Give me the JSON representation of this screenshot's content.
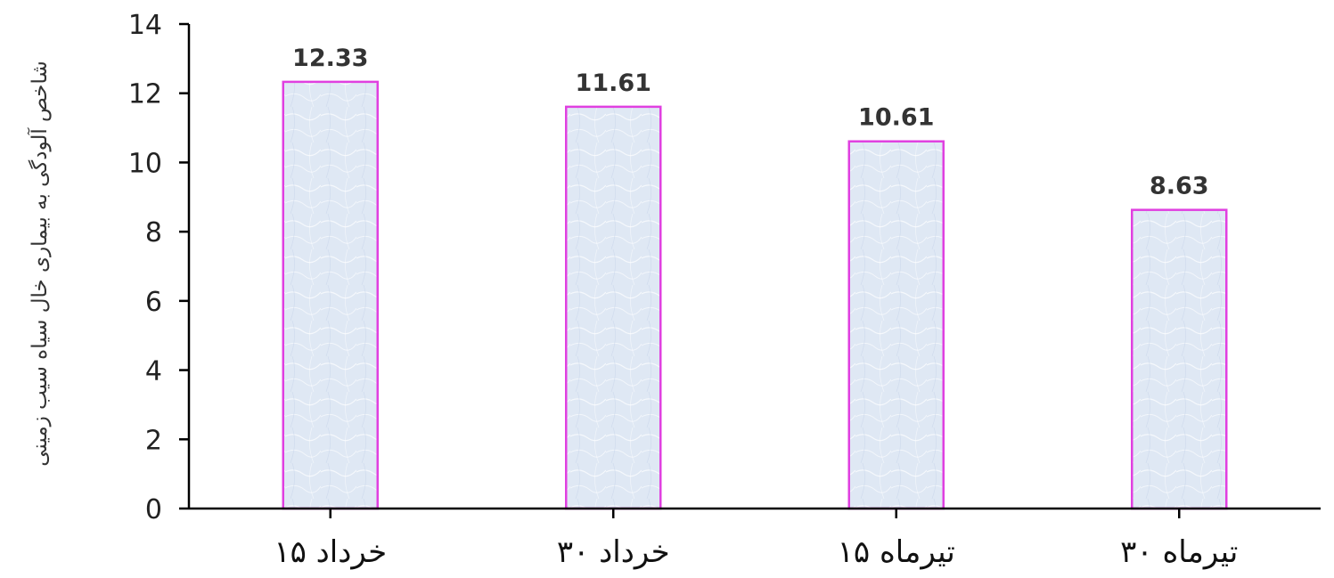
{
  "chart_data": {
    "type": "bar",
    "categories": [
      "۱۵ خرداد",
      "۳۰ خرداد",
      "۱۵ تیرماه",
      "۳۰ تیرماه"
    ],
    "values": [
      12.33,
      11.61,
      10.61,
      8.63
    ],
    "data_labels": [
      "12.33",
      "11.61",
      "10.61",
      "8.63"
    ],
    "ylabel": "شاخص آلودگی به بیماری خال سیاه سیب زمینی",
    "ylim": [
      0,
      14
    ],
    "yticks": [
      0,
      2,
      4,
      6,
      8,
      10,
      12,
      14
    ],
    "grid": false,
    "legend": "none",
    "colors": {
      "bar_fill": "#dfe8f4",
      "bar_stroke": "#e040e0",
      "axis": "#000000"
    }
  }
}
